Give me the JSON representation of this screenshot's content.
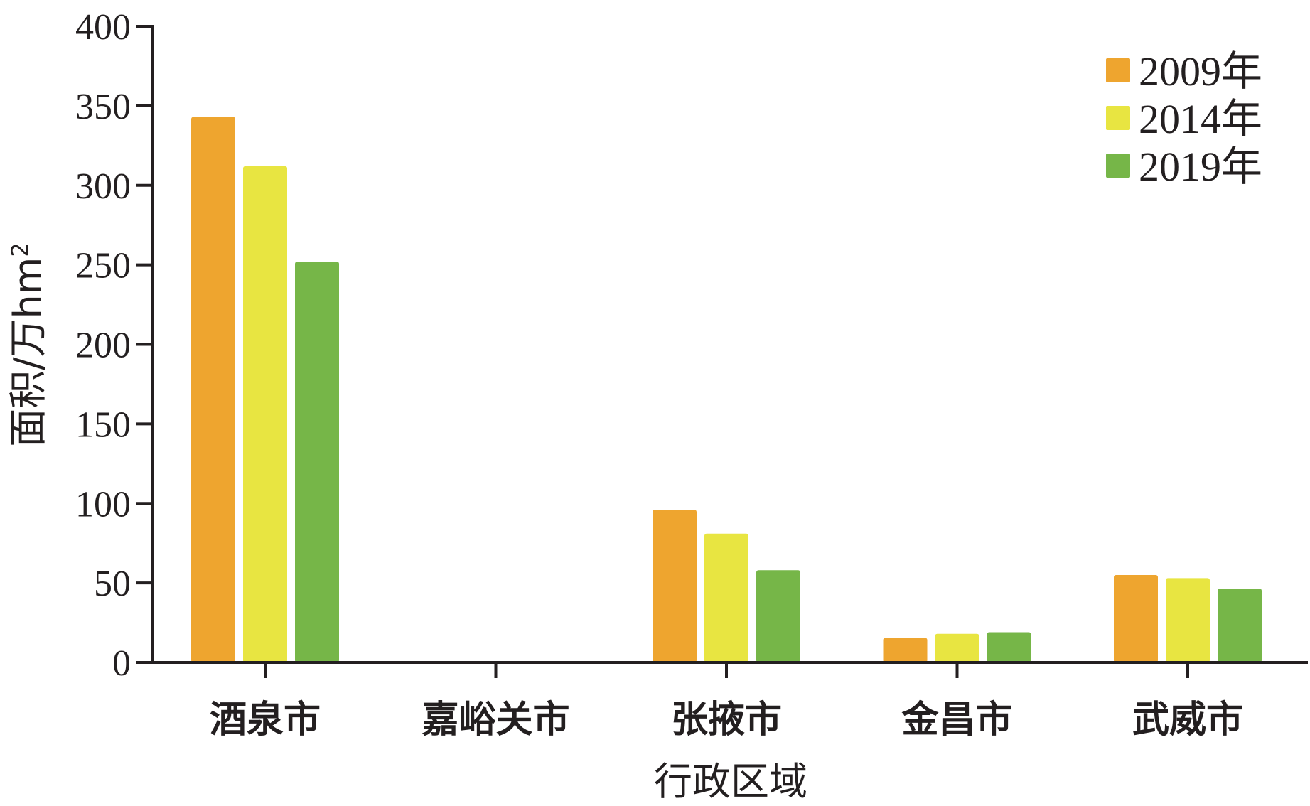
{
  "chart_data": {
    "type": "bar",
    "title": "",
    "xlabel": "行政区域",
    "ylabel": "面积/万hm²",
    "ylabel_main": "面积/万hm",
    "ylabel_sup": "2",
    "ylim": [
      0,
      400
    ],
    "yticks": [
      0,
      50,
      100,
      150,
      200,
      250,
      300,
      350,
      400
    ],
    "yticks_labels": [
      "0",
      "50",
      "100",
      "150",
      "200",
      "250",
      "300",
      "350",
      "400"
    ],
    "categories": [
      "酒泉市",
      "嘉峪关市",
      "张掖市",
      "金昌市",
      "武威市"
    ],
    "series": [
      {
        "name": "2009年",
        "color": "#eea52f",
        "values": [
          343,
          0,
          96,
          15.5,
          55
        ]
      },
      {
        "name": "2014年",
        "color": "#e8e541",
        "values": [
          312,
          0,
          81,
          18,
          53
        ]
      },
      {
        "name": "2019年",
        "color": "#76b648",
        "values": [
          252,
          0,
          58,
          19,
          46.5
        ]
      }
    ],
    "grid": false,
    "legend_position": "top-right"
  }
}
